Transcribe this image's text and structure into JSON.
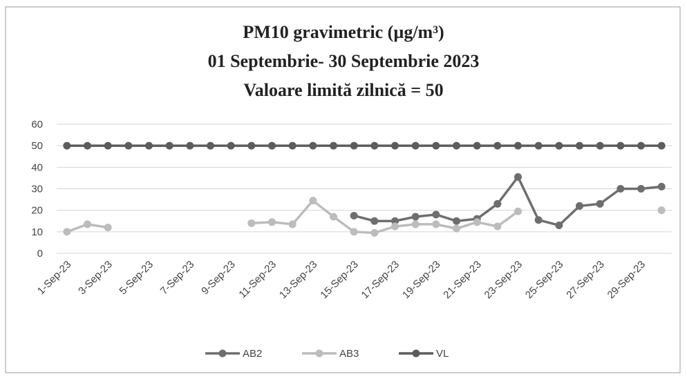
{
  "chart_data": {
    "type": "line",
    "title": [
      "PM10 gravimetric (µg/m³)",
      "01 Septembrie- 30 Septembrie 2023",
      "Valoare limită zilnică  = 50"
    ],
    "categories": [
      "1-Sep-23",
      null,
      "3-Sep-23",
      null,
      "5-Sep-23",
      null,
      "7-Sep-23",
      null,
      "9-Sep-23",
      null,
      "11-Sep-23",
      null,
      "13-Sep-23",
      null,
      "15-Sep-23",
      null,
      "17-Sep-23",
      null,
      "19-Sep-23",
      null,
      "21-Sep-23",
      null,
      "23-Sep-23",
      null,
      "25-Sep-23",
      null,
      "27-Sep-23",
      null,
      "29-Sep-23",
      null
    ],
    "series": [
      {
        "name": "AB2",
        "color": "#6e6e6e",
        "values": [
          null,
          null,
          null,
          null,
          null,
          null,
          null,
          null,
          null,
          null,
          null,
          null,
          null,
          null,
          17.5,
          15,
          15,
          17,
          18,
          15,
          16,
          23,
          35.5,
          15.5,
          13,
          22,
          23,
          30,
          30,
          31
        ]
      },
      {
        "name": "AB3",
        "color": "#bcbcbc",
        "values": [
          10,
          13.5,
          12,
          null,
          null,
          null,
          null,
          null,
          null,
          14,
          14.5,
          13.5,
          24.5,
          17,
          10,
          9.5,
          12.5,
          13.5,
          13.5,
          11.5,
          14.5,
          12.5,
          19.5,
          null,
          null,
          null,
          null,
          null,
          null,
          20
        ]
      },
      {
        "name": "VL",
        "color": "#5c5c5c",
        "values": [
          50,
          50,
          50,
          50,
          50,
          50,
          50,
          50,
          50,
          50,
          50,
          50,
          50,
          50,
          50,
          50,
          50,
          50,
          50,
          50,
          50,
          50,
          50,
          50,
          50,
          50,
          50,
          50,
          50,
          50
        ]
      }
    ],
    "ylim": [
      0,
      60
    ],
    "yticks": [
      0,
      10,
      20,
      30,
      40,
      50,
      60
    ],
    "grid": true,
    "legend": "bottom"
  }
}
